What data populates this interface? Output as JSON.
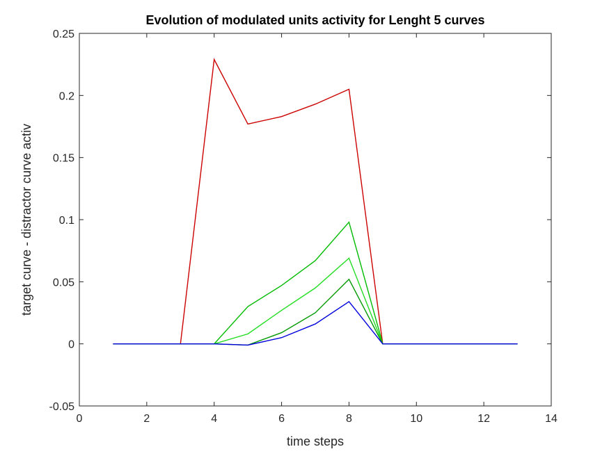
{
  "chart_data": {
    "type": "line",
    "title": "Evolution of modulated units activity for Lenght 5 curves",
    "xlabel": "time steps",
    "ylabel": "target curve - distractor curve activ",
    "xlim": [
      0,
      14
    ],
    "ylim": [
      -0.05,
      0.25
    ],
    "xticks": [
      0,
      2,
      4,
      6,
      8,
      10,
      12,
      14
    ],
    "yticks": [
      -0.05,
      0,
      0.05,
      0.1,
      0.15,
      0.2,
      0.25
    ],
    "ytick_labels": [
      "-0.05",
      "0",
      "0.05",
      "0.1",
      "0.15",
      "0.2",
      "0.25"
    ],
    "grid": false,
    "legend": "none",
    "x": [
      1,
      2,
      3,
      4,
      5,
      6,
      7,
      8,
      9,
      10,
      11,
      12,
      13
    ],
    "series": [
      {
        "color": "#cc0000",
        "values": [
          0,
          0,
          0,
          0.229,
          0.177,
          0.183,
          0.193,
          0.205,
          0,
          0,
          0,
          0,
          0
        ]
      },
      {
        "color": "#00bb00",
        "values": [
          0,
          0,
          0,
          0,
          0.03,
          0.047,
          0.067,
          0.098,
          0,
          0,
          0,
          0,
          0
        ]
      },
      {
        "color": "#22dd22",
        "values": [
          0,
          0,
          0,
          0,
          0.008,
          0.027,
          0.045,
          0.069,
          0,
          0,
          0,
          0,
          0
        ]
      },
      {
        "color": "#009900",
        "values": [
          0,
          0,
          0,
          0,
          -0.001,
          0.009,
          0.025,
          0.052,
          0,
          0,
          0,
          0,
          0
        ]
      },
      {
        "color": "#0000dd",
        "values": [
          0,
          0,
          0,
          0,
          -0.001,
          0.005,
          0.016,
          0.034,
          0,
          0,
          0,
          0,
          0
        ]
      }
    ]
  }
}
